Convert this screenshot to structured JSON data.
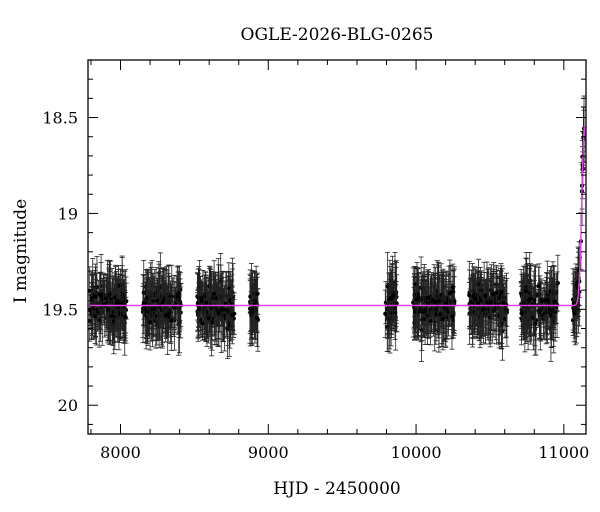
{
  "chart_data": {
    "type": "scatter",
    "title": "OGLE-2026-BLG-0265",
    "xlabel": "HJD - 2450000",
    "ylabel": "I magnitude",
    "xlim": [
      7780,
      11150
    ],
    "ylim": [
      20.15,
      18.2
    ],
    "y_inverted": true,
    "x_ticks": [
      8000,
      9000,
      10000,
      11000
    ],
    "x_tick_labels": [
      "8000",
      "9000",
      "10000",
      "11000"
    ],
    "y_ticks": [
      18.5,
      19,
      19.5,
      20
    ],
    "y_tick_labels": [
      "18.5",
      "19",
      "19.5",
      "20"
    ],
    "grid": false,
    "legend": "none",
    "baseline_magnitude": 19.48,
    "observing_seasons": [
      {
        "start": 7790,
        "end": 8040
      },
      {
        "start": 8150,
        "end": 8410
      },
      {
        "start": 8520,
        "end": 8770
      },
      {
        "start": 8870,
        "end": 8930
      },
      {
        "start": 9790,
        "end": 9870
      },
      {
        "start": 9980,
        "end": 10260
      },
      {
        "start": 10360,
        "end": 10620
      },
      {
        "start": 10710,
        "end": 10960
      },
      {
        "start": 11060,
        "end": 11140
      }
    ],
    "event": {
      "t0": 11140,
      "peak_magnitude": 18.55
    },
    "series": [
      {
        "kind": "data",
        "color": "#000000",
        "typical_error": 0.13
      },
      {
        "kind": "model",
        "color": "#e040e8"
      }
    ]
  }
}
